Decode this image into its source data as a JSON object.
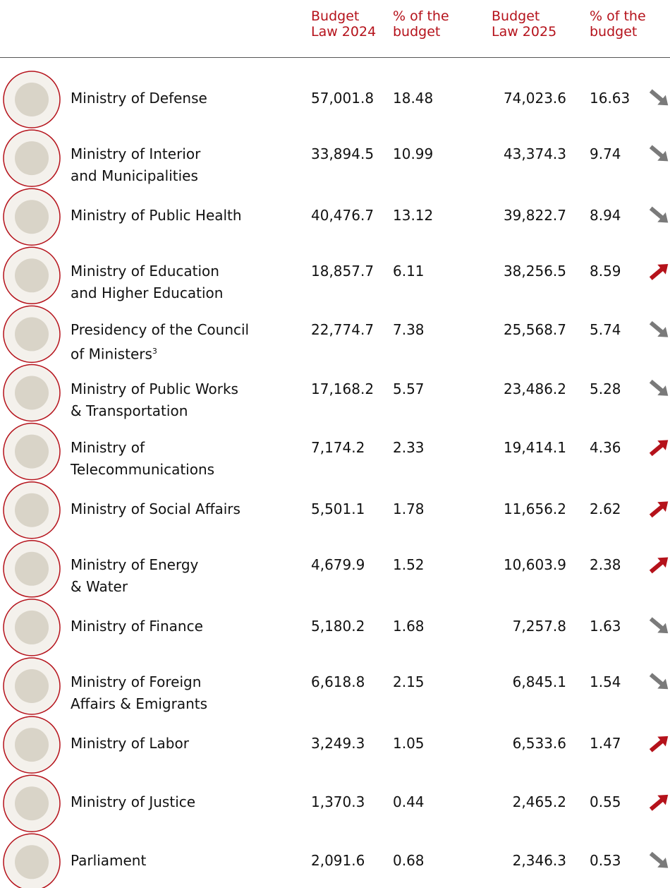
{
  "table": {
    "headers": [
      "Budget Law 2024",
      "% of the budget",
      "Budget Law 2025",
      "% of the budget"
    ],
    "rows": [
      {
        "name": [
          "Ministry of Defense"
        ],
        "values": [
          "57,001.8",
          "18.48",
          "74,023.6",
          "16.63"
        ],
        "trend": "down"
      },
      {
        "name": [
          "Ministry of Interior",
          "and Municipalities"
        ],
        "values": [
          "33,894.5",
          "10.99",
          "43,374.3",
          "9.74"
        ],
        "trend": "down"
      },
      {
        "name": [
          "Ministry of Public Health"
        ],
        "values": [
          "40,476.7",
          "13.12",
          "39,822.7",
          "8.94"
        ],
        "trend": "down"
      },
      {
        "name": [
          "Ministry of Education",
          "and Higher Education"
        ],
        "values": [
          "18,857.7",
          "6.11",
          "38,256.5",
          "8.59"
        ],
        "trend": "up"
      },
      {
        "name": [
          "Presidency of the Council",
          "of Ministers"
        ],
        "note": "3",
        "values": [
          "22,774.7",
          "7.38",
          "25,568.7",
          "5.74"
        ],
        "trend": "down"
      },
      {
        "name": [
          "Ministry of Public Works",
          "& Transportation"
        ],
        "values": [
          "17,168.2",
          "5.57",
          "23,486.2",
          "5.28"
        ],
        "trend": "down"
      },
      {
        "name": [
          "Ministry of",
          "Telecommunications"
        ],
        "values": [
          "7,174.2",
          "2.33",
          "19,414.1",
          "4.36"
        ],
        "trend": "up"
      },
      {
        "name": [
          "Ministry of Social Affairs"
        ],
        "values": [
          "5,501.1",
          "1.78",
          "11,656.2",
          "2.62"
        ],
        "trend": "up"
      },
      {
        "name": [
          "Ministry of Energy",
          "& Water"
        ],
        "values": [
          "4,679.9",
          "1.52",
          "10,603.9",
          "2.38"
        ],
        "trend": "up"
      },
      {
        "name": [
          "Ministry of Finance"
        ],
        "values": [
          "5,180.2",
          "1.68",
          "7,257.8",
          "1.63"
        ],
        "trend": "down"
      },
      {
        "name": [
          "Ministry of Foreign",
          "Affairs & Emigrants"
        ],
        "values": [
          "6,618.8",
          "2.15",
          "6,845.1",
          "1.54"
        ],
        "trend": "down"
      },
      {
        "name": [
          "Ministry of Labor"
        ],
        "values": [
          "3,249.3",
          "1.05",
          "6,533.6",
          "1.47"
        ],
        "trend": "up"
      },
      {
        "name": [
          "Ministry of Justice"
        ],
        "values": [
          "1,370.3",
          "0.44",
          "2,465.2",
          "0.55"
        ],
        "trend": "up"
      },
      {
        "name": [
          "Parliament"
        ],
        "values": [
          "2,091.6",
          "0.68",
          "2,346.3",
          "0.53"
        ],
        "trend": "down"
      }
    ]
  }
}
